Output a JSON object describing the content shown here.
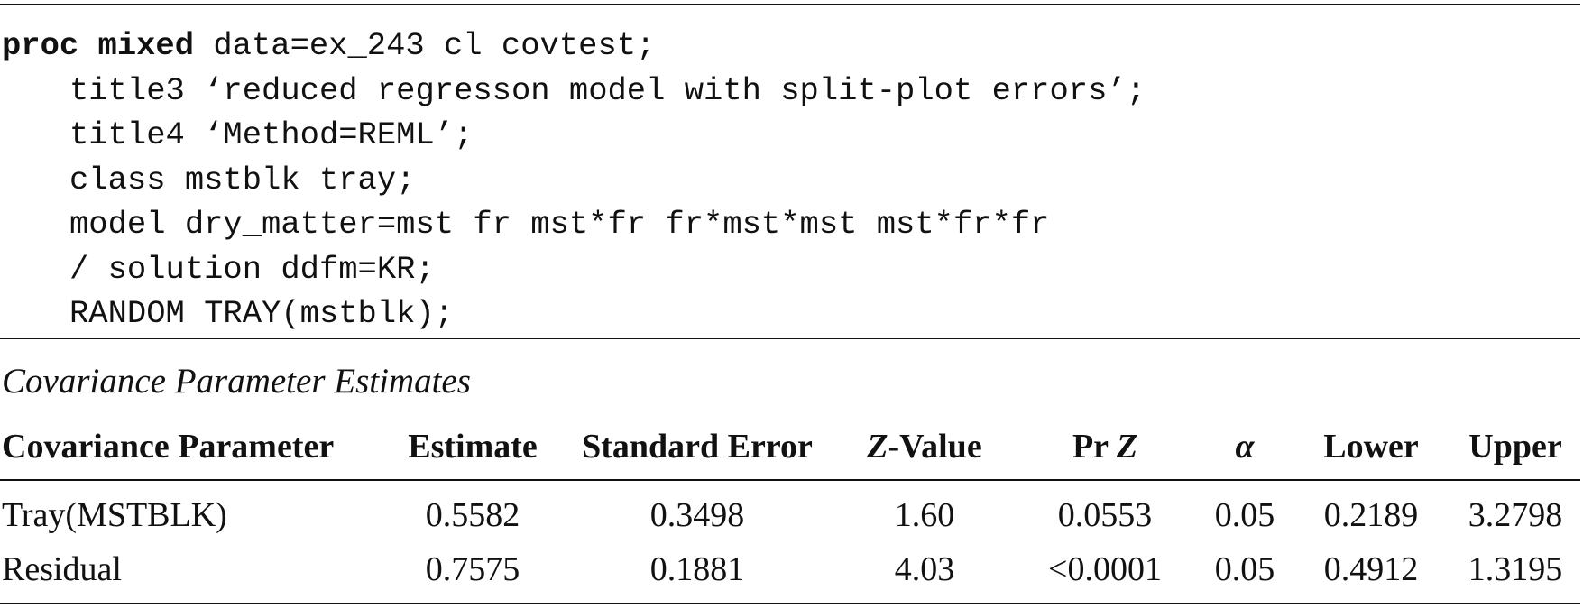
{
  "code": {
    "line1_keyword": "proc mixed",
    "line1_rest": " data=ex_243 cl covtest;",
    "lines": [
      "title3 ‘reduced regresson model with split-plot errors’;",
      "title4 ‘Method=REML’;",
      "class mstblk tray;",
      "model dry_matter=mst fr mst*fr fr*mst*mst mst*fr*fr",
      "/ solution ddfm=KR;",
      "RANDOM TRAY(mstblk);"
    ]
  },
  "table": {
    "title": "Covariance Parameter Estimates",
    "headers": {
      "covparm": "Covariance Parameter",
      "estimate": "Estimate",
      "stderr": "Standard Error",
      "zvalue_z": "Z",
      "zvalue_rest": "-Value",
      "prz_pr": "Pr ",
      "prz_z": "Z",
      "alpha": "α",
      "lower": "Lower",
      "upper": "Upper"
    },
    "rows": [
      {
        "covparm": "Tray(MSTBLK)",
        "estimate": "0.5582",
        "stderr": "0.3498",
        "zvalue": "1.60",
        "prz": "0.0553",
        "alpha": "0.05",
        "lower": "0.2189",
        "upper": "3.2798"
      },
      {
        "covparm": "Residual",
        "estimate": "0.7575",
        "stderr": "0.1881",
        "zvalue": "4.03",
        "prz": "<0.0001",
        "alpha": "0.05",
        "lower": "0.4912",
        "upper": "1.3195"
      }
    ]
  }
}
